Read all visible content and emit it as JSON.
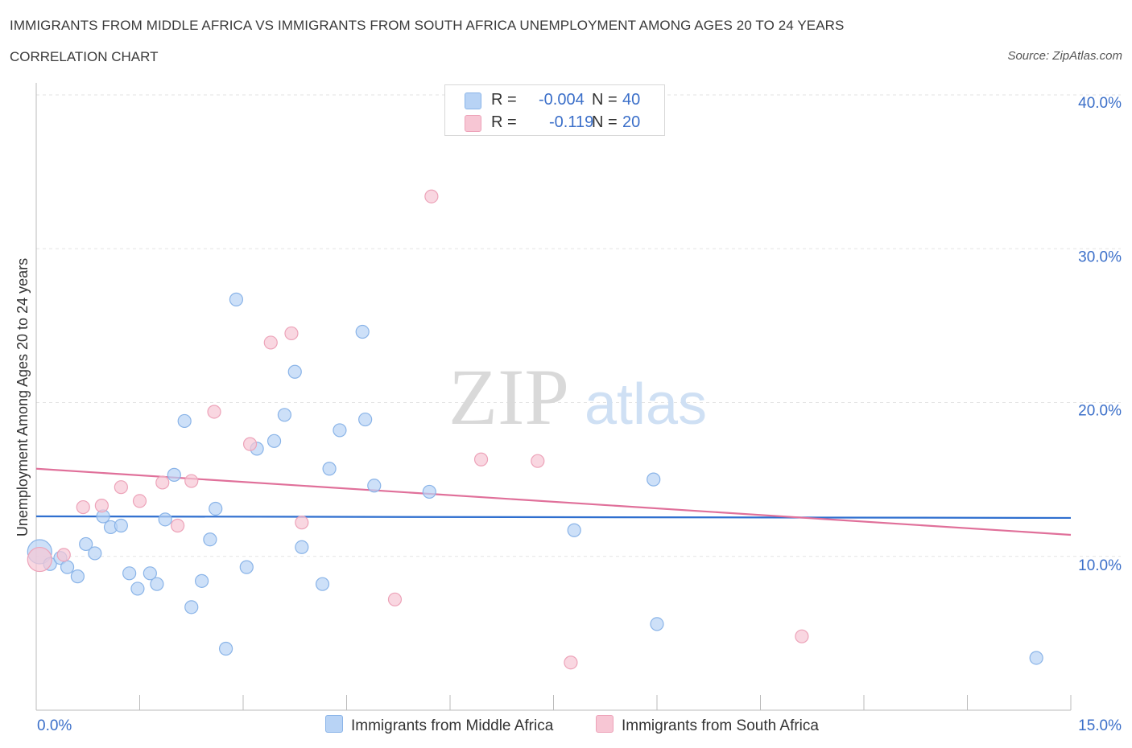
{
  "header": {
    "title": "IMMIGRANTS FROM MIDDLE AFRICA VS IMMIGRANTS FROM SOUTH AFRICA UNEMPLOYMENT AMONG AGES 20 TO 24 YEARS",
    "subtitle": "CORRELATION CHART",
    "source": "Source: ZipAtlas.com"
  },
  "watermark": {
    "zip": "ZIP",
    "atlas": "atlas"
  },
  "legend": {
    "r_label": "R =",
    "n_label": "N =",
    "series": [
      {
        "r": "-0.004",
        "n": "40"
      },
      {
        "r": "-0.119",
        "n": "20"
      }
    ]
  },
  "colors": {
    "blue_fill": "#b8d3f5",
    "blue_stroke": "#8ab4e8",
    "blue_line": "#2f6fcf",
    "pink_fill": "#f7c6d4",
    "pink_stroke": "#eda3b9",
    "pink_line": "#e0709a",
    "axis_text": "#3b6fc9",
    "grid": "#e3e3e3"
  },
  "chart_data": {
    "type": "scatter",
    "title": "IMMIGRANTS FROM MIDDLE AFRICA VS IMMIGRANTS FROM SOUTH AFRICA UNEMPLOYMENT AMONG AGES 20 TO 24 YEARS",
    "xlabel": "",
    "ylabel": "Unemployment Among Ages 20 to 24 years",
    "xlim": [
      0,
      15
    ],
    "ylim": [
      0,
      40
    ],
    "x_tick_labels": [
      "0.0%",
      "15.0%"
    ],
    "y_ticks": [
      10,
      20,
      30,
      40
    ],
    "y_tick_labels": [
      "10.0%",
      "20.0%",
      "30.0%",
      "40.0%"
    ],
    "grid": true,
    "legend_position": "top-center",
    "series": [
      {
        "name": "Immigrants from Middle Africa",
        "color": "blue",
        "r": -0.004,
        "n": 40,
        "trend": {
          "x": [
            0,
            15
          ],
          "y": [
            12.6,
            12.5
          ]
        },
        "points": [
          [
            0.05,
            10.3
          ],
          [
            0.2,
            9.5
          ],
          [
            0.35,
            9.9
          ],
          [
            0.45,
            9.3
          ],
          [
            0.6,
            8.7
          ],
          [
            0.72,
            10.8
          ],
          [
            0.85,
            10.2
          ],
          [
            0.97,
            12.6
          ],
          [
            1.08,
            11.9
          ],
          [
            1.23,
            12.0
          ],
          [
            1.35,
            8.9
          ],
          [
            1.47,
            7.9
          ],
          [
            1.65,
            8.9
          ],
          [
            1.75,
            8.2
          ],
          [
            1.87,
            12.4
          ],
          [
            2.0,
            15.3
          ],
          [
            2.15,
            18.8
          ],
          [
            2.25,
            6.7
          ],
          [
            2.4,
            8.4
          ],
          [
            2.52,
            11.1
          ],
          [
            2.6,
            13.1
          ],
          [
            2.75,
            4.0
          ],
          [
            2.9,
            26.7
          ],
          [
            3.05,
            9.3
          ],
          [
            3.2,
            17.0
          ],
          [
            3.45,
            17.5
          ],
          [
            3.6,
            19.2
          ],
          [
            3.75,
            22.0
          ],
          [
            3.85,
            10.6
          ],
          [
            4.15,
            8.2
          ],
          [
            4.25,
            15.7
          ],
          [
            4.4,
            18.2
          ],
          [
            4.73,
            24.6
          ],
          [
            4.77,
            18.9
          ],
          [
            4.9,
            14.6
          ],
          [
            5.7,
            14.2
          ],
          [
            7.8,
            11.7
          ],
          [
            8.95,
            15.0
          ],
          [
            9.0,
            5.6
          ],
          [
            14.5,
            3.4
          ]
        ]
      },
      {
        "name": "Immigrants from South Africa",
        "color": "pink",
        "r": -0.119,
        "n": 20,
        "trend": {
          "x": [
            0,
            15
          ],
          "y": [
            15.7,
            11.4
          ]
        },
        "points": [
          [
            0.05,
            9.8
          ],
          [
            0.4,
            10.1
          ],
          [
            0.68,
            13.2
          ],
          [
            0.95,
            13.3
          ],
          [
            1.23,
            14.5
          ],
          [
            1.5,
            13.6
          ],
          [
            1.83,
            14.8
          ],
          [
            2.05,
            12.0
          ],
          [
            2.25,
            14.9
          ],
          [
            2.58,
            19.4
          ],
          [
            3.1,
            17.3
          ],
          [
            3.4,
            23.9
          ],
          [
            3.7,
            24.5
          ],
          [
            3.85,
            12.2
          ],
          [
            5.2,
            7.2
          ],
          [
            5.73,
            33.4
          ],
          [
            6.45,
            16.3
          ],
          [
            7.27,
            16.2
          ],
          [
            7.75,
            3.1
          ],
          [
            11.1,
            4.8
          ]
        ]
      }
    ]
  }
}
